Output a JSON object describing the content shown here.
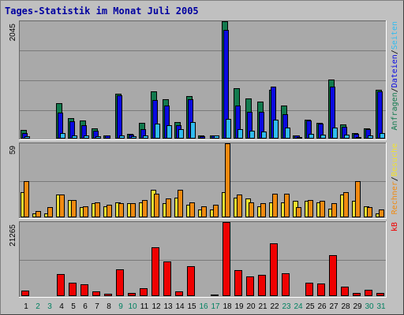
{
  "title": "Tages-Statistik im Monat Juli 2005",
  "colors": {
    "anfragen": "#127a4e",
    "dateien": "#0a0ae0",
    "seiten": "#30bcf0",
    "besuche": "#f0e030",
    "rechner": "#f08a10",
    "kb": "#f00000",
    "weekday_label": "#000000",
    "weekend_label": "#008060"
  },
  "chart_data": [
    {
      "type": "bar",
      "panel": "top",
      "ymax_label": "2045",
      "ylim": [
        0,
        2045
      ],
      "legend": [
        "Anfragen",
        "/",
        "Dateien",
        "/",
        "Seiten"
      ],
      "categories": [
        "1",
        "2",
        "3",
        "4",
        "5",
        "6",
        "7",
        "8",
        "9",
        "10",
        "11",
        "12",
        "13",
        "14",
        "15",
        "16",
        "17",
        "18",
        "19",
        "20",
        "21",
        "22",
        "23",
        "24",
        "25",
        "26",
        "27",
        "28",
        "29",
        "30",
        "31"
      ],
      "weekend_days": [
        2,
        3,
        9,
        10,
        16,
        17,
        23,
        24,
        30,
        31
      ],
      "series": [
        {
          "name": "Anfragen",
          "values": [
            150,
            5,
            5,
            620,
            350,
            320,
            180,
            50,
            780,
            80,
            270,
            820,
            690,
            290,
            740,
            50,
            60,
            2045,
            880,
            700,
            650,
            850,
            570,
            60,
            330,
            270,
            1030,
            250,
            100,
            180,
            850
          ]
        },
        {
          "name": "Dateien",
          "values": [
            100,
            5,
            5,
            450,
            300,
            240,
            140,
            50,
            750,
            70,
            170,
            670,
            580,
            230,
            680,
            40,
            60,
            1900,
            570,
            460,
            460,
            900,
            430,
            50,
            320,
            260,
            900,
            200,
            80,
            170,
            820
          ]
        },
        {
          "name": "Seiten",
          "values": [
            40,
            2,
            2,
            90,
            60,
            50,
            40,
            10,
            50,
            40,
            60,
            260,
            230,
            160,
            290,
            20,
            50,
            340,
            170,
            140,
            130,
            330,
            190,
            30,
            80,
            70,
            190,
            70,
            30,
            50,
            100
          ]
        }
      ]
    },
    {
      "type": "bar",
      "panel": "middle",
      "ymax_label": "59",
      "ylim": [
        0,
        59
      ],
      "legend": [
        "Rechner",
        "/",
        "Besuche"
      ],
      "categories": [
        "1",
        "2",
        "3",
        "4",
        "5",
        "6",
        "7",
        "8",
        "9",
        "10",
        "11",
        "12",
        "13",
        "14",
        "15",
        "16",
        "17",
        "18",
        "19",
        "20",
        "21",
        "22",
        "23",
        "24",
        "25",
        "26",
        "27",
        "28",
        "29",
        "30",
        "31"
      ],
      "weekend_days": [
        2,
        3,
        9,
        10,
        16,
        17,
        23,
        24,
        30,
        31
      ],
      "series": [
        {
          "name": "Besuche",
          "values": [
            20,
            3,
            3,
            18,
            14,
            8,
            11,
            9,
            12,
            11,
            12,
            22,
            11,
            16,
            10,
            6,
            6,
            20,
            16,
            15,
            9,
            12,
            12,
            13,
            13,
            12,
            7,
            18,
            13,
            9,
            3
          ]
        },
        {
          "name": "Rechner",
          "values": [
            29,
            5,
            8,
            18,
            14,
            9,
            12,
            10,
            11,
            11,
            14,
            19,
            15,
            22,
            12,
            9,
            10,
            59,
            18,
            12,
            11,
            19,
            19,
            8,
            14,
            13,
            11,
            20,
            29,
            8,
            6
          ]
        }
      ]
    },
    {
      "type": "bar",
      "panel": "bottom",
      "ymax_label": "21265",
      "ylim": [
        0,
        21265
      ],
      "legend": [
        "kB"
      ],
      "categories": [
        "1",
        "2",
        "3",
        "4",
        "5",
        "6",
        "7",
        "8",
        "9",
        "10",
        "11",
        "12",
        "13",
        "14",
        "15",
        "16",
        "17",
        "18",
        "19",
        "20",
        "21",
        "22",
        "23",
        "24",
        "25",
        "26",
        "27",
        "28",
        "29",
        "30",
        "31"
      ],
      "weekend_days": [
        2,
        3,
        9,
        10,
        16,
        17,
        23,
        24,
        30,
        31
      ],
      "series": [
        {
          "name": "kB",
          "values": [
            1500,
            300,
            300,
            6300,
            3900,
            3500,
            1400,
            700,
            7700,
            1000,
            2200,
            14000,
            9900,
            1400,
            8700,
            300,
            500,
            21265,
            7500,
            5700,
            6200,
            15200,
            6500,
            300,
            3900,
            3600,
            11800,
            2800,
            1000,
            1700,
            1000
          ]
        }
      ]
    }
  ]
}
